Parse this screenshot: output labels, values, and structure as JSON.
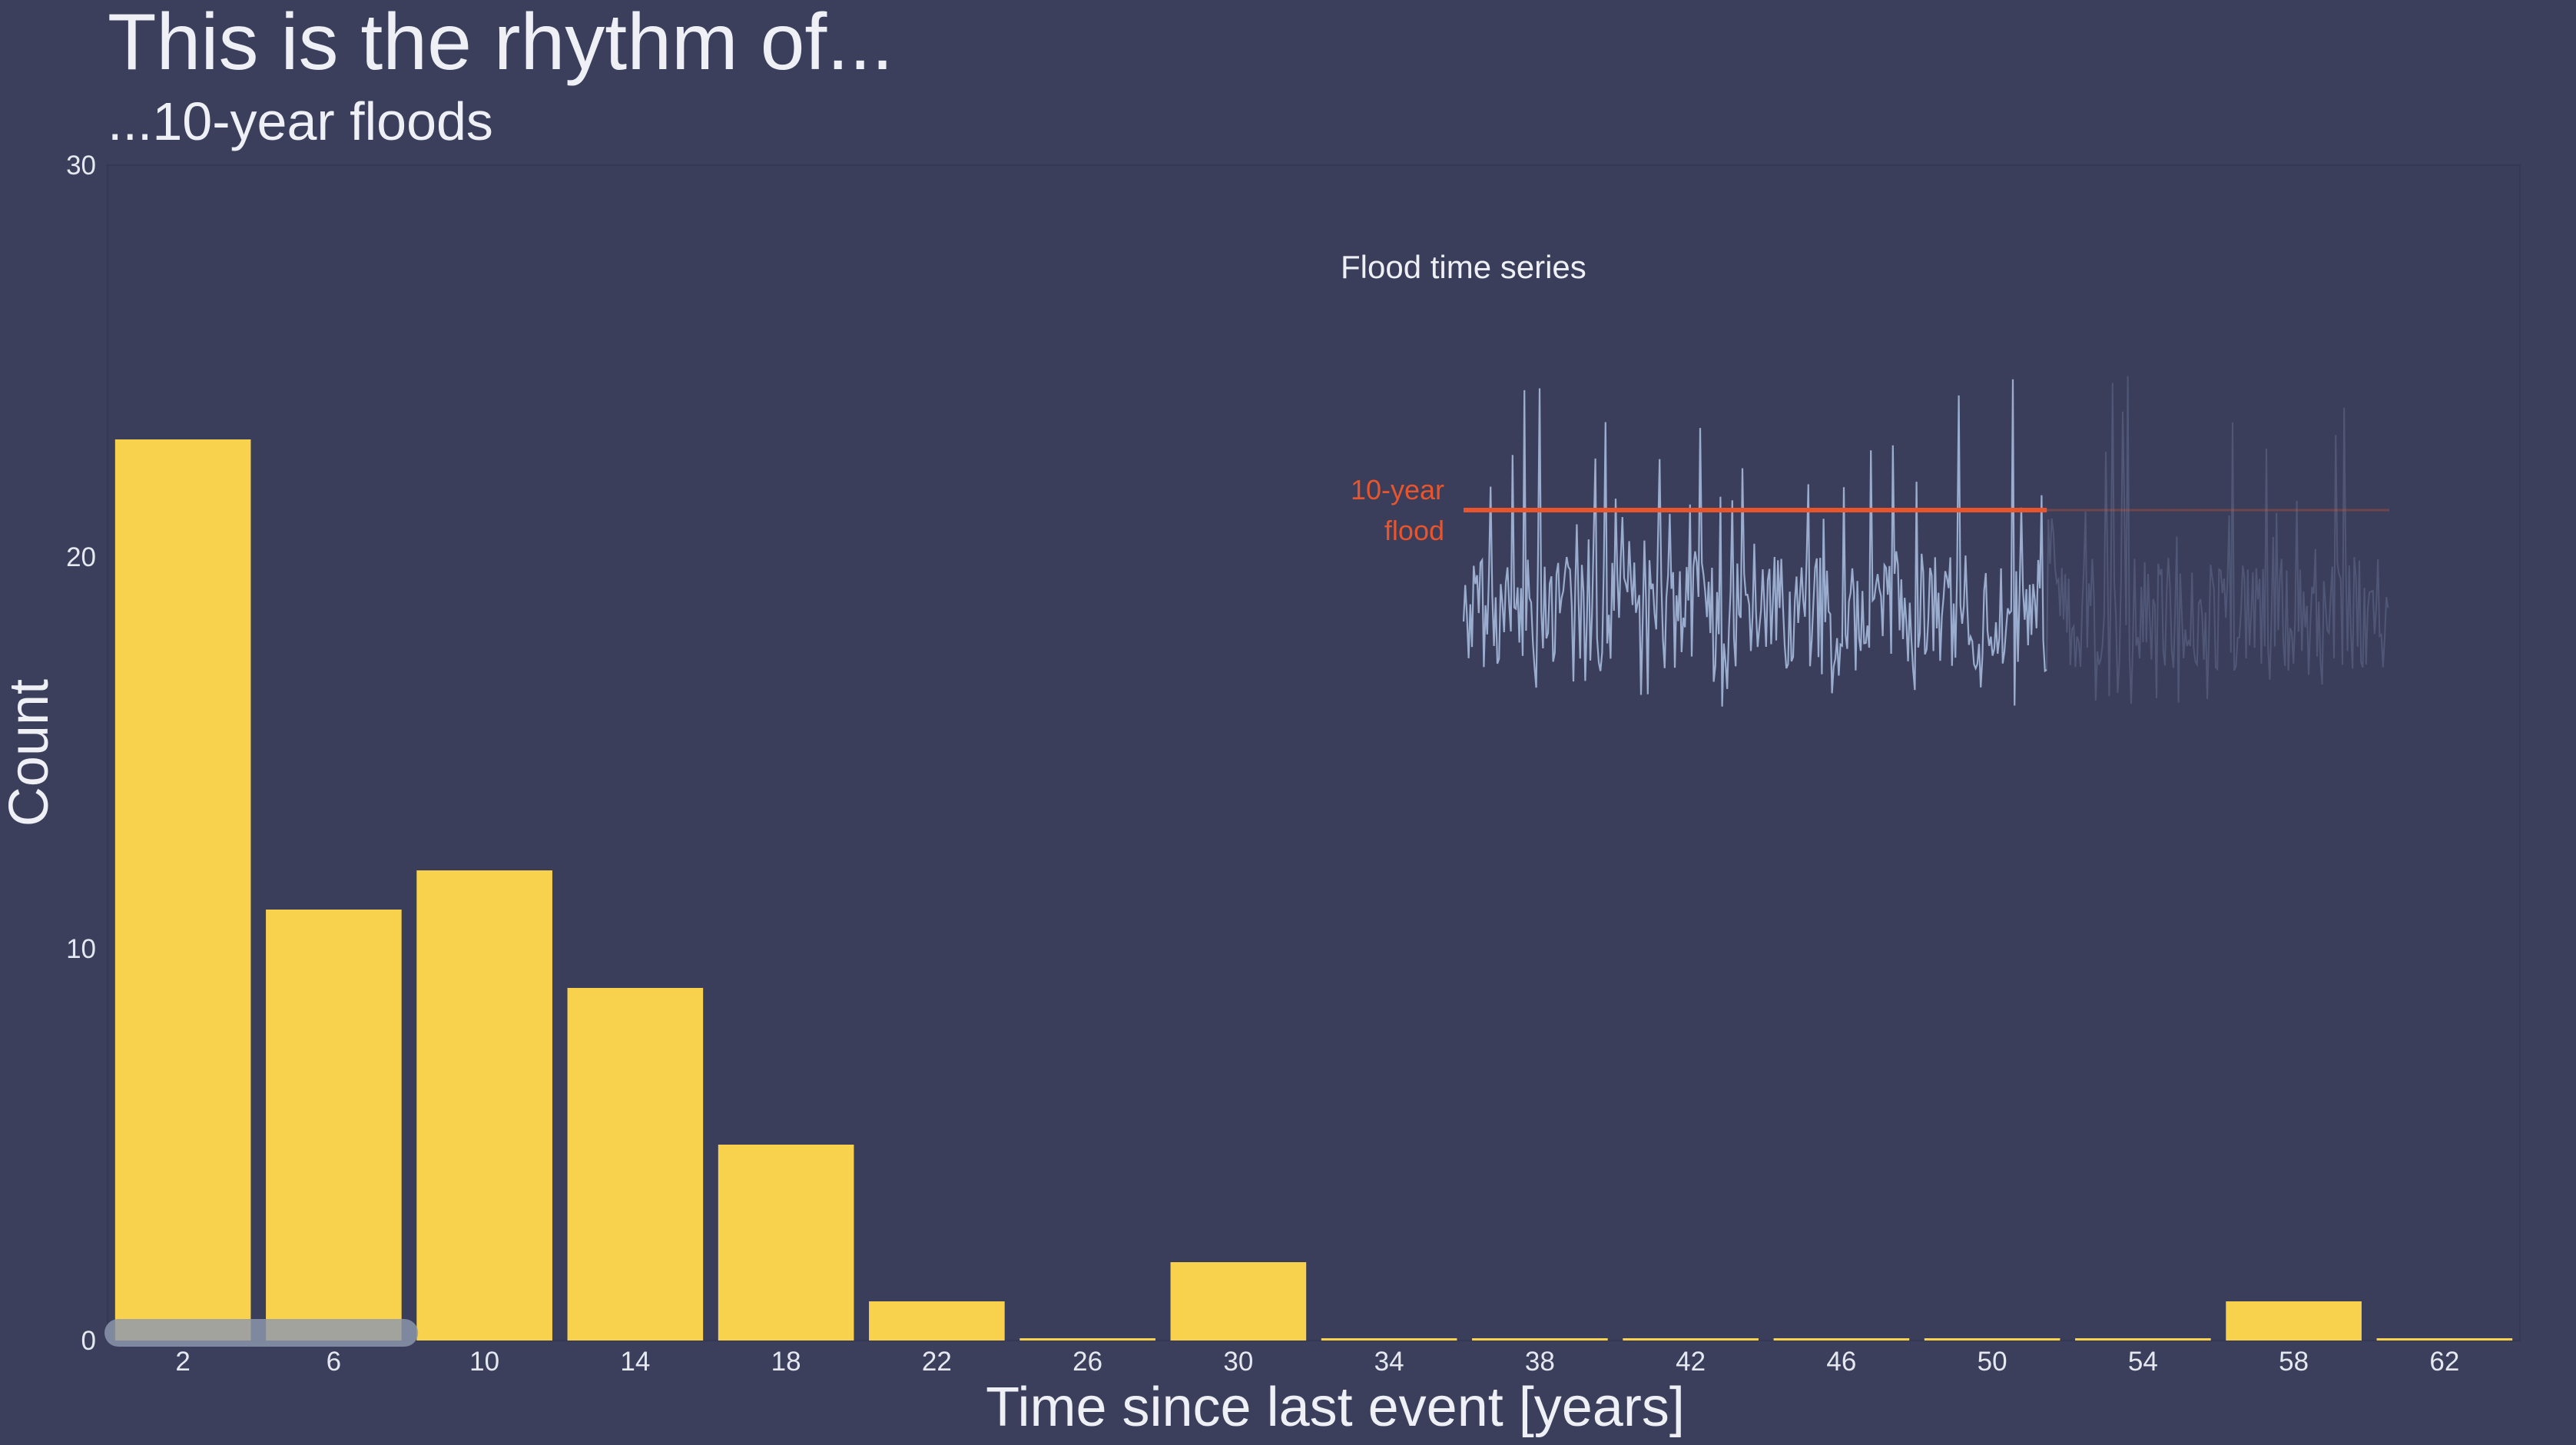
{
  "title": "This is the rhythm of...",
  "subtitle": "...10-year floods",
  "colors": {
    "background": "#3b3f5c",
    "bar": "#f8d24d",
    "threshold": "#e8552c",
    "series": "#9fb3d6",
    "slider": "#8d99ad"
  },
  "chart_data": {
    "type": "bar",
    "xlabel": "Time since last event [years]",
    "ylabel": "Count",
    "ylim": [
      0,
      30
    ],
    "yticks": [
      0,
      10,
      20,
      30
    ],
    "categories": [
      "2",
      "6",
      "10",
      "14",
      "18",
      "22",
      "26",
      "30",
      "34",
      "38",
      "42",
      "46",
      "50",
      "54",
      "58",
      "62"
    ],
    "values": [
      23,
      11,
      12,
      9,
      5,
      1,
      0,
      2,
      0,
      0,
      0,
      0,
      0,
      0,
      1,
      0
    ],
    "grid": false,
    "progress_fraction": 0.13,
    "inset": {
      "title": "Flood time series",
      "threshold_label_line1": "10-year",
      "threshold_label_line2": "flood",
      "revealed_fraction": 0.63
    }
  }
}
